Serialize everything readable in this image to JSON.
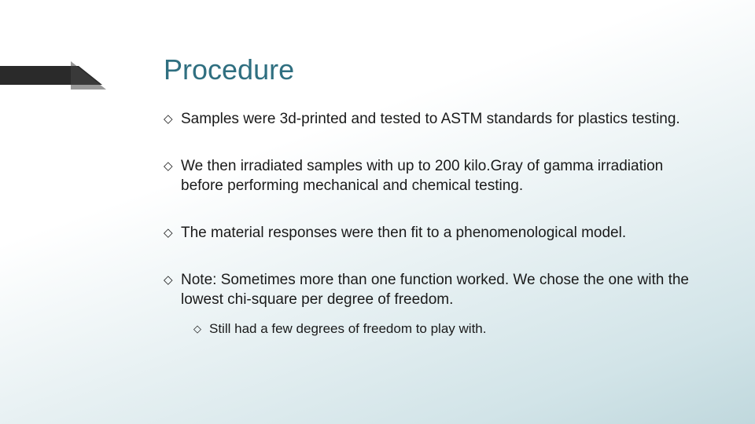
{
  "title": "Procedure",
  "title_color": "#2f6f80",
  "title_fontsize": 36,
  "body_fontsize": 19,
  "sub_fontsize": 17,
  "body_color": "#1a1a1a",
  "background_gradient": [
    "#ffffff",
    "#e8f1f3",
    "#c0d8dd"
  ],
  "decoration_color": "#2a2a2a",
  "bullet_glyph": "◇",
  "bullets": [
    {
      "text": "Samples were 3d-printed and tested to ASTM standards for plastics testing."
    },
    {
      "text": "We then irradiated samples with up to 200 kilo.Gray of gamma irradiation before performing mechanical and chemical testing."
    },
    {
      "text": "The material responses were then fit to a phenomenological model."
    },
    {
      "text": "Note:  Sometimes more than one function worked.  We chose the one with the lowest chi-square per degree of freedom.",
      "sub": [
        {
          "text": "Still had a few degrees of freedom to play with."
        }
      ]
    }
  ]
}
